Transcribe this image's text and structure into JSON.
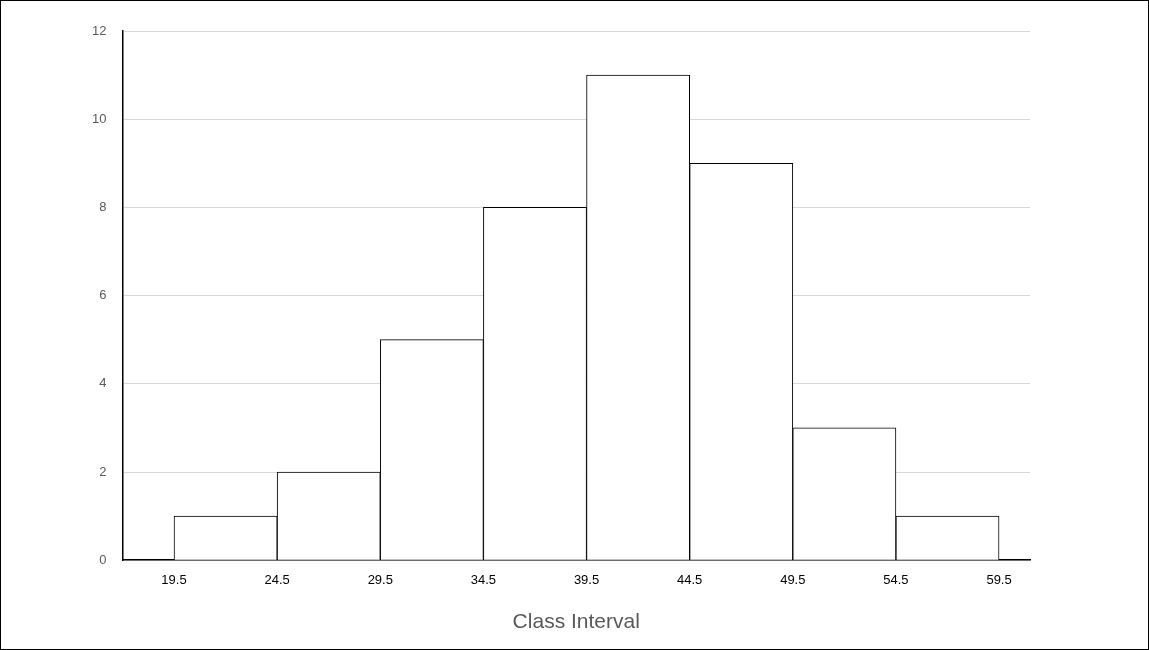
{
  "chart_data": {
    "type": "histogram",
    "xlabel": "Class Interval",
    "bins": [
      19.5,
      24.5,
      29.5,
      34.5,
      39.5,
      44.5,
      49.5,
      54.5,
      59.5
    ],
    "values": [
      1,
      2,
      5,
      8,
      11,
      9,
      3,
      1
    ],
    "color": "#ffffff",
    "xlim": [
      17,
      61
    ],
    "xticks": [
      19.5,
      24.5,
      29.5,
      34.5,
      39.5,
      44.5,
      49.5,
      54.5,
      59.5
    ],
    "ylim": [
      0,
      12
    ],
    "yticks": [
      0,
      2,
      4,
      6,
      8,
      10,
      12
    ],
    "grid": "y",
    "legend": false
  }
}
